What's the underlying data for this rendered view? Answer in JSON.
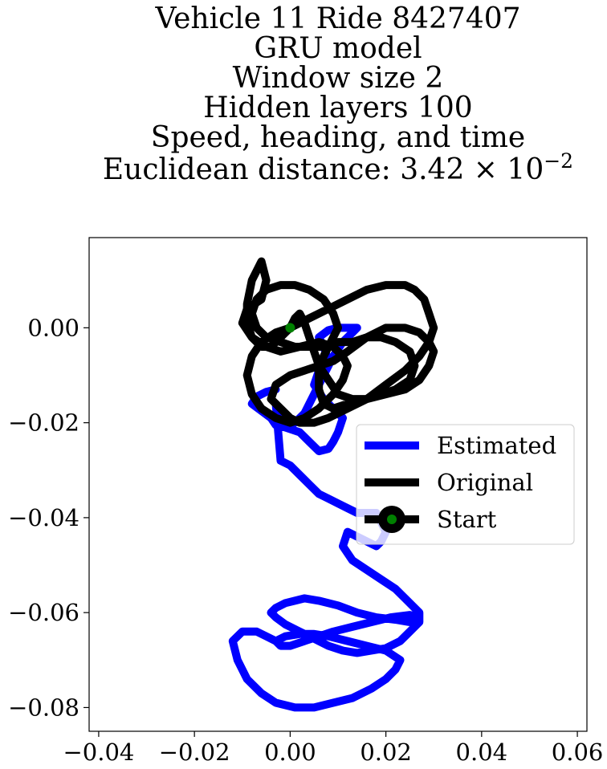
{
  "chart_data": {
    "type": "line",
    "title_lines": [
      "Vehicle 11 Ride 8427407",
      "GRU model",
      "Window size 2",
      "Hidden layers 100",
      "Speed, heading, and time"
    ],
    "title_metric": {
      "prefix": "Euclidean distance: ",
      "mantissa": "3.42",
      "times": "×",
      "base": "10",
      "exponent": "−2"
    },
    "xlim": [
      -0.042,
      0.062
    ],
    "ylim": [
      -0.085,
      0.019
    ],
    "x_ticks": [
      -0.04,
      -0.02,
      0.0,
      0.02,
      0.04,
      0.06
    ],
    "x_tick_labels": [
      "−0.04",
      "−0.02",
      "0.00",
      "0.02",
      "0.04",
      "0.06"
    ],
    "y_ticks": [
      0.0,
      -0.02,
      -0.04,
      -0.06,
      -0.08
    ],
    "y_tick_labels": [
      "0.00",
      "−0.02",
      "−0.04",
      "−0.06",
      "−0.08"
    ],
    "grid": false,
    "legend_position": "center-right",
    "series": [
      {
        "name": "Estimated",
        "color": "#0000ff",
        "x": [
          -0.003,
          -0.005,
          -0.007,
          -0.008,
          -0.006,
          -0.004,
          -0.003,
          -0.001,
          0.002,
          0.004,
          0.006,
          0.008,
          0.009,
          0.01,
          0.011,
          0.009,
          0.007,
          0.005,
          0.006,
          0.008,
          0.007,
          0.006,
          0.008,
          0.01,
          0.012,
          0.014,
          0.013,
          0.011,
          0.009,
          0.007,
          0.005,
          0.003,
          0.001,
          -0.001,
          -0.003,
          -0.002,
          0.0,
          0.002,
          0.004,
          0.006,
          0.008,
          0.01,
          0.012,
          0.014,
          0.016,
          0.018,
          0.019,
          0.02,
          0.019,
          0.018,
          0.016,
          0.014,
          0.012,
          0.011,
          0.013,
          0.016,
          0.019,
          0.022,
          0.024,
          0.026,
          0.027,
          0.027,
          0.025,
          0.022,
          0.018,
          0.014,
          0.01,
          0.006,
          0.003,
          0.001,
          -0.001,
          -0.003,
          -0.004,
          -0.003,
          -0.001,
          0.002,
          0.005,
          0.008,
          0.011,
          0.014,
          0.017,
          0.02,
          0.023,
          0.025,
          0.027,
          0.027,
          0.025,
          0.021,
          0.017,
          0.013,
          0.009,
          0.006,
          0.003,
          0.0,
          -0.002,
          -0.003,
          -0.001,
          0.002,
          0.005,
          0.008,
          0.012,
          0.016,
          0.02,
          0.023,
          0.022,
          0.02,
          0.017,
          0.013,
          0.009,
          0.005,
          0.001,
          -0.003,
          -0.006,
          -0.009,
          -0.011,
          -0.012,
          -0.01,
          -0.007,
          -0.005,
          -0.003,
          -0.002
        ],
        "y": [
          -0.013,
          -0.0135,
          -0.0145,
          -0.016,
          -0.0175,
          -0.019,
          -0.0205,
          -0.021,
          -0.022,
          -0.024,
          -0.026,
          -0.0255,
          -0.024,
          -0.022,
          -0.019,
          -0.017,
          -0.015,
          -0.012,
          -0.009,
          -0.007,
          -0.004,
          -0.002,
          -0.0005,
          0.0,
          0.0,
          0.0,
          -0.001,
          -0.003,
          -0.006,
          -0.01,
          -0.014,
          -0.018,
          -0.02,
          -0.019,
          -0.016,
          -0.028,
          -0.029,
          -0.031,
          -0.033,
          -0.035,
          -0.036,
          -0.037,
          -0.038,
          -0.039,
          -0.039,
          -0.039,
          -0.041,
          -0.043,
          -0.045,
          -0.046,
          -0.045,
          -0.044,
          -0.043,
          -0.046,
          -0.049,
          -0.051,
          -0.053,
          -0.055,
          -0.057,
          -0.059,
          -0.06,
          -0.0615,
          -0.062,
          -0.0615,
          -0.061,
          -0.06,
          -0.0585,
          -0.0575,
          -0.057,
          -0.0575,
          -0.058,
          -0.059,
          -0.06,
          -0.061,
          -0.0625,
          -0.064,
          -0.0655,
          -0.067,
          -0.068,
          -0.0685,
          -0.068,
          -0.0675,
          -0.066,
          -0.064,
          -0.062,
          -0.061,
          -0.0605,
          -0.061,
          -0.062,
          -0.063,
          -0.064,
          -0.065,
          -0.066,
          -0.067,
          -0.067,
          -0.066,
          -0.065,
          -0.0645,
          -0.0645,
          -0.065,
          -0.066,
          -0.067,
          -0.068,
          -0.07,
          -0.072,
          -0.074,
          -0.076,
          -0.078,
          -0.079,
          -0.08,
          -0.08,
          -0.079,
          -0.077,
          -0.074,
          -0.07,
          -0.066,
          -0.064,
          -0.064,
          -0.065,
          -0.066,
          -0.067
        ]
      },
      {
        "name": "Original",
        "color": "#000000",
        "x": [
          0.0,
          -0.002,
          -0.004,
          -0.006,
          -0.008,
          -0.009,
          -0.009,
          -0.008,
          -0.006,
          -0.005,
          -0.006,
          -0.009,
          -0.01,
          -0.008,
          -0.005,
          -0.002,
          0.002,
          0.006,
          0.009,
          0.011,
          0.012,
          0.011,
          0.009,
          0.006,
          0.003,
          0.0,
          -0.003,
          -0.006,
          -0.008,
          -0.009,
          -0.008,
          -0.006,
          -0.003,
          0.0,
          0.004,
          0.008,
          0.012,
          0.016,
          0.02,
          0.024,
          0.026,
          0.028,
          0.029,
          0.03,
          0.029,
          0.027,
          0.024,
          0.02,
          0.016,
          0.012,
          0.008,
          0.005,
          0.002,
          0.0,
          -0.002,
          -0.004,
          -0.003,
          0.0,
          0.003,
          0.006,
          0.009,
          0.012,
          0.016,
          0.02,
          0.024,
          0.027,
          0.029,
          0.03,
          0.029,
          0.027,
          0.024,
          0.02,
          0.016,
          0.012,
          0.009,
          0.007,
          0.006,
          0.006,
          0.007,
          0.008,
          0.009,
          0.01,
          0.009,
          0.007,
          0.004,
          0.001,
          -0.002,
          -0.005,
          -0.007,
          -0.008,
          -0.007,
          -0.005,
          -0.002,
          0.001,
          0.004,
          0.007,
          0.01,
          0.013,
          0.016,
          0.019,
          0.022,
          0.025,
          0.026,
          0.025,
          0.022,
          0.019,
          0.016,
          0.013,
          0.01,
          0.008,
          0.006,
          0.005,
          0.004,
          0.003,
          0.002,
          0.001,
          0.0
        ],
        "y": [
          0.0,
          -0.002,
          -0.004,
          -0.004,
          -0.002,
          0.001,
          0.005,
          0.01,
          0.014,
          0.01,
          0.006,
          0.004,
          0.001,
          -0.002,
          -0.004,
          -0.005,
          -0.004,
          -0.003,
          -0.004,
          -0.006,
          -0.008,
          -0.011,
          -0.014,
          -0.017,
          -0.019,
          -0.02,
          -0.019,
          -0.017,
          -0.014,
          -0.01,
          -0.006,
          -0.003,
          -0.001,
          0.0,
          0.002,
          0.004,
          0.006,
          0.008,
          0.009,
          0.009,
          0.008,
          0.006,
          0.003,
          0.0,
          -0.003,
          -0.006,
          -0.009,
          -0.012,
          -0.015,
          -0.017,
          -0.019,
          -0.02,
          -0.02,
          -0.019,
          -0.017,
          -0.015,
          -0.012,
          -0.01,
          -0.009,
          -0.008,
          -0.007,
          -0.005,
          -0.002,
          0.0,
          0.0,
          -0.001,
          -0.003,
          -0.005,
          -0.008,
          -0.011,
          -0.013,
          -0.014,
          -0.015,
          -0.016,
          -0.017,
          -0.016,
          -0.013,
          -0.009,
          -0.006,
          -0.004,
          -0.002,
          0.0,
          0.003,
          0.006,
          0.008,
          0.009,
          0.009,
          0.008,
          0.006,
          0.003,
          0.0,
          -0.002,
          -0.003,
          -0.004,
          -0.004,
          -0.004,
          -0.003,
          -0.003,
          -0.002,
          -0.002,
          -0.003,
          -0.005,
          -0.008,
          -0.011,
          -0.013,
          -0.014,
          -0.015,
          -0.015,
          -0.014,
          -0.011,
          -0.008,
          -0.005,
          -0.002,
          0.001,
          0.003,
          0.002,
          0.0
        ]
      },
      {
        "name": "Start",
        "color": "#008000",
        "x": [
          0.0
        ],
        "y": [
          0.0
        ]
      }
    ]
  }
}
